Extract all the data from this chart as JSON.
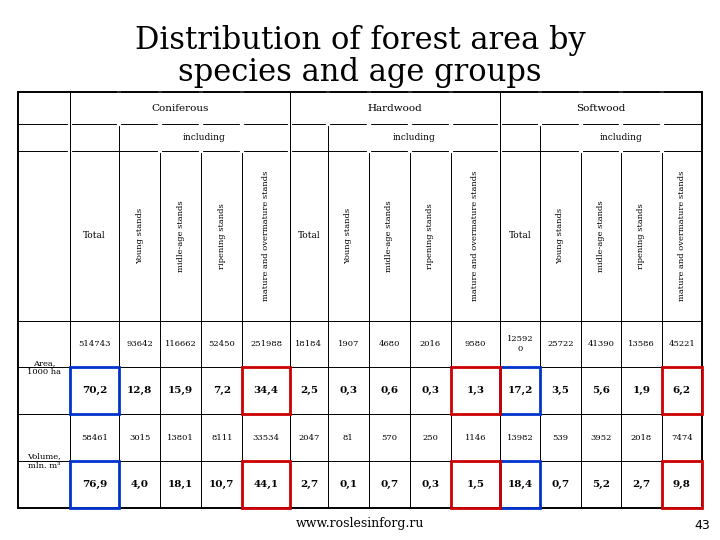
{
  "title_line1": "Distribution of forest area by",
  "title_line2": "species and age groups",
  "website": "www.roslesinforg.ru",
  "page_number": "43",
  "group_headers": [
    "Coniferous",
    "Hardwood",
    "Softwood"
  ],
  "col_headers_rotated": [
    "Young stands",
    "midle-age stands",
    "ripening stands",
    "mature and overmature stands"
  ],
  "section_labels": [
    {
      "label": "Area,\n1000 ha",
      "row1_data": [
        "514743",
        "93642",
        "116662",
        "52450",
        "251988",
        "18184",
        "1907",
        "4680",
        "2016",
        "9580",
        "12592\n0",
        "25722",
        "41390",
        "13586",
        "45221"
      ],
      "row2_data": [
        "70,2",
        "12,8",
        "15,9",
        "7,2",
        "34,4",
        "2,5",
        "0,3",
        "0,6",
        "0,3",
        "1,3",
        "17,2",
        "3,5",
        "5,6",
        "1,9",
        "6,2"
      ]
    },
    {
      "label": "Volume,\nmln. m³",
      "row1_data": [
        "58461",
        "3015",
        "13801",
        "8111",
        "33534",
        "2047",
        "81",
        "570",
        "250",
        "1146",
        "13982",
        "539",
        "3952",
        "2018",
        "7474"
      ],
      "row2_data": [
        "76,9",
        "4,0",
        "18,1",
        "10,7",
        "44,1",
        "2,7",
        "0,1",
        "0,7",
        "0,3",
        "1,5",
        "18,4",
        "0,7",
        "5,2",
        "2,7",
        "9,8"
      ]
    }
  ],
  "blue_col_indices": [
    1,
    11
  ],
  "red_col_indices": [
    5,
    10,
    15
  ],
  "background_color": "#ffffff",
  "title_fontsize": 22,
  "table_fontsize_header": 7.5,
  "table_fontsize_rotated": 6.0,
  "table_fontsize_data": 6.5,
  "table_fontsize_pct": 7.5
}
